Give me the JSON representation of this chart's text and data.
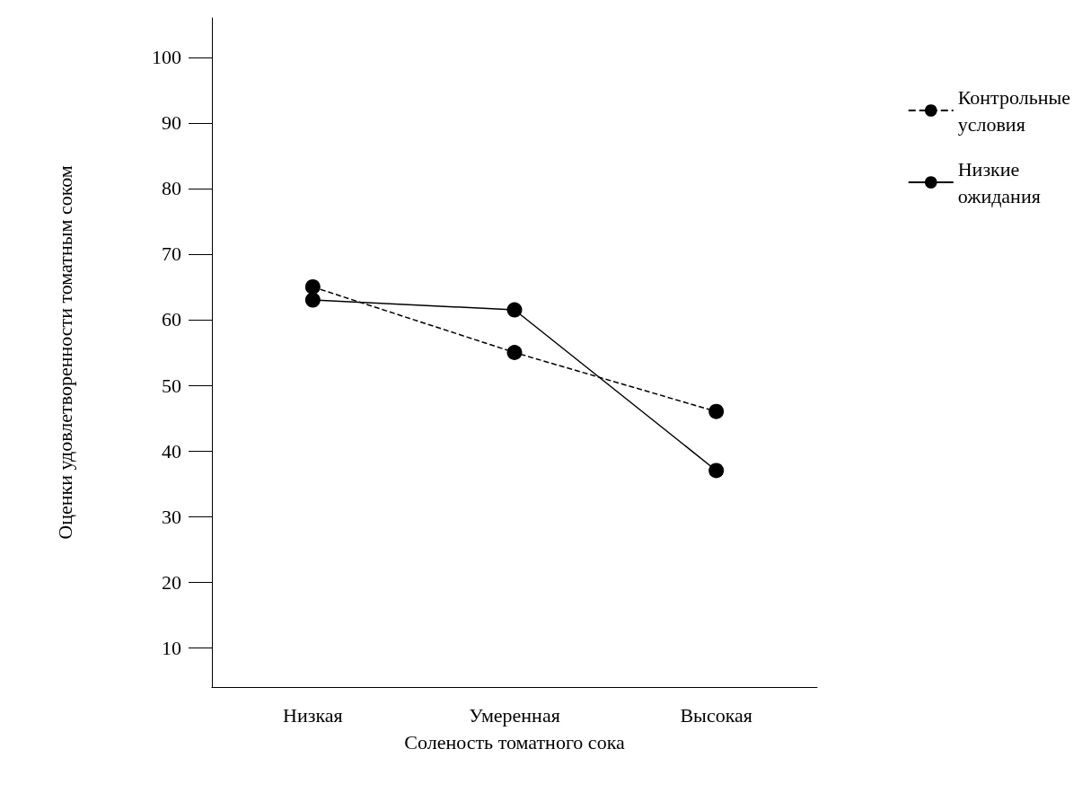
{
  "chart_data": {
    "type": "line",
    "xlabel": "Соленость томатного сока",
    "ylabel": "Оценки удовлетворенности томатным соком",
    "categories": [
      "Низкая",
      "Умеренная",
      "Высокая"
    ],
    "series": [
      {
        "name": "Контрольные условия",
        "color": "#000000",
        "values": [
          65,
          55,
          46
        ],
        "line_style": "dashed"
      },
      {
        "name": "Низкие ожидания",
        "color": "#000000",
        "values": [
          63,
          61.5,
          37
        ],
        "line_style": "solid"
      }
    ],
    "ylim": [
      4,
      106
    ],
    "yticks": [
      10,
      20,
      30,
      40,
      50,
      60,
      70,
      80,
      90,
      100
    ],
    "grid": false,
    "legend": "top right",
    "marker": "circle"
  }
}
